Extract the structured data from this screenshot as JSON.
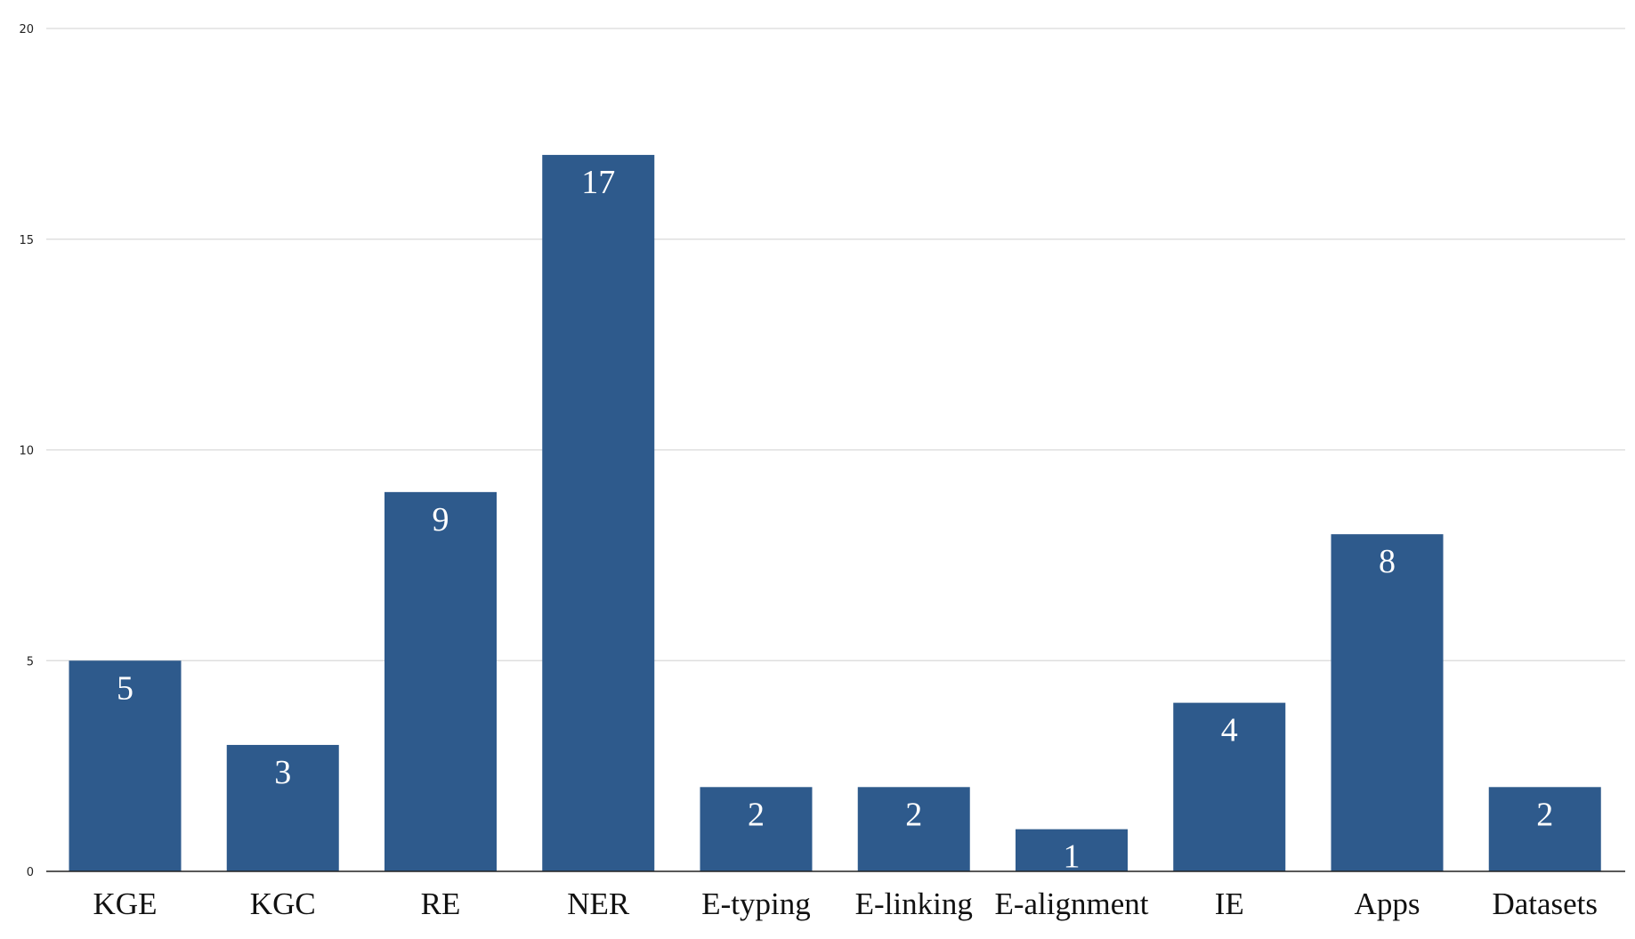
{
  "chart_data": {
    "type": "bar",
    "title": "",
    "xlabel": "",
    "ylabel": "",
    "categories": [
      "KGE",
      "KGC",
      "RE",
      "NER",
      "E-typing",
      "E-linking",
      "E-alignment",
      "IE",
      "Apps",
      "Datasets"
    ],
    "values": [
      5,
      3,
      9,
      17,
      2,
      2,
      1,
      4,
      8,
      2
    ],
    "ylim": [
      0,
      20
    ],
    "yticks": [
      "0",
      "5",
      "10",
      "15",
      "20"
    ],
    "data_labels": [
      "5",
      "3",
      "9",
      "17",
      "2",
      "2",
      "1",
      "4",
      "8",
      "2"
    ],
    "grid": true,
    "legend": "none",
    "bar_color": "#2e5a8c",
    "label_color": "#ffffff"
  }
}
